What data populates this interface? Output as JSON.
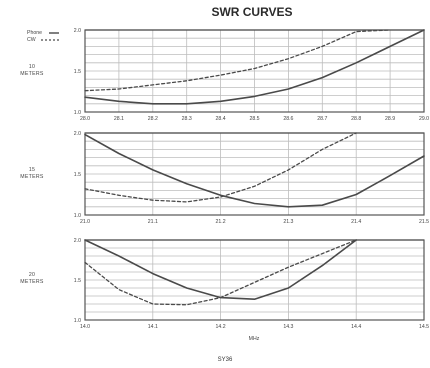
{
  "title": "SWR CURVES",
  "legend": {
    "items": [
      {
        "label": "Phone",
        "style": "solid"
      },
      {
        "label": "CW",
        "style": "dashed"
      }
    ]
  },
  "xlabel": "MHz",
  "footnote": "SY36",
  "colors": {
    "curve": "#4a4a4a",
    "grid": "#bdbdbd",
    "frame": "#555555"
  },
  "chart_data": [
    {
      "type": "line",
      "panel_label": [
        "10",
        "METERS"
      ],
      "x_tick_labels": [
        "28.0",
        "28.1",
        "28.2",
        "28.3",
        "28.4",
        "28.5",
        "28.6",
        "28.7",
        "28.8",
        "28.9",
        "29.0"
      ],
      "y_tick_labels": [
        "2.0",
        "1.5",
        "1.0"
      ],
      "xlim": [
        28.0,
        29.0
      ],
      "ylim": [
        1.0,
        2.0
      ],
      "series": [
        {
          "name": "Phone",
          "style": "solid",
          "x": [
            28.0,
            28.1,
            28.2,
            28.3,
            28.4,
            28.5,
            28.6,
            28.7,
            28.8,
            28.9,
            29.0
          ],
          "y": [
            1.18,
            1.13,
            1.1,
            1.1,
            1.13,
            1.19,
            1.28,
            1.42,
            1.6,
            1.8,
            2.02
          ]
        },
        {
          "name": "CW",
          "style": "dashed",
          "x": [
            28.0,
            28.1,
            28.2,
            28.3,
            28.4,
            28.5,
            28.6,
            28.7,
            28.8,
            28.9
          ],
          "y": [
            1.26,
            1.28,
            1.33,
            1.38,
            1.45,
            1.53,
            1.65,
            1.8,
            1.98,
            2.1
          ]
        }
      ]
    },
    {
      "type": "line",
      "panel_label": [
        "15",
        "METERS"
      ],
      "x_tick_labels": [
        "21.0",
        "21.1",
        "21.2",
        "21.3",
        "21.4",
        "21.5"
      ],
      "y_tick_labels": [
        "2.0",
        "1.5",
        "1.0"
      ],
      "xlim": [
        21.0,
        21.5
      ],
      "ylim": [
        1.0,
        2.0
      ],
      "series": [
        {
          "name": "Phone",
          "style": "solid",
          "x": [
            21.0,
            21.05,
            21.1,
            21.15,
            21.2,
            21.25,
            21.3,
            21.35,
            21.4,
            21.45,
            21.5
          ],
          "y": [
            1.98,
            1.75,
            1.55,
            1.38,
            1.24,
            1.14,
            1.1,
            1.12,
            1.25,
            1.48,
            1.72
          ]
        },
        {
          "name": "CW",
          "style": "dashed",
          "x": [
            21.0,
            21.05,
            21.1,
            21.15,
            21.2,
            21.25,
            21.3,
            21.35,
            21.4
          ],
          "y": [
            1.32,
            1.24,
            1.18,
            1.16,
            1.22,
            1.35,
            1.55,
            1.8,
            2.02
          ]
        }
      ]
    },
    {
      "type": "line",
      "panel_label": [
        "20",
        "METERS"
      ],
      "x_tick_labels": [
        "14.0",
        "14.1",
        "14.2",
        "14.3",
        "14.4",
        "14.5"
      ],
      "y_tick_labels": [
        "2.0",
        "1.5",
        "1.0"
      ],
      "xlim": [
        14.0,
        14.5
      ],
      "ylim": [
        1.0,
        2.0
      ],
      "series": [
        {
          "name": "Phone",
          "style": "solid",
          "x": [
            14.0,
            14.05,
            14.1,
            14.15,
            14.2,
            14.25,
            14.3,
            14.35,
            14.4
          ],
          "y": [
            2.0,
            1.8,
            1.58,
            1.4,
            1.28,
            1.26,
            1.4,
            1.68,
            2.0
          ]
        },
        {
          "name": "CW",
          "style": "dashed",
          "x": [
            14.0,
            14.05,
            14.1,
            14.15,
            14.2,
            14.25,
            14.3,
            14.35,
            14.4
          ],
          "y": [
            1.72,
            1.38,
            1.2,
            1.19,
            1.28,
            1.47,
            1.66,
            1.83,
            2.0
          ]
        }
      ]
    }
  ]
}
